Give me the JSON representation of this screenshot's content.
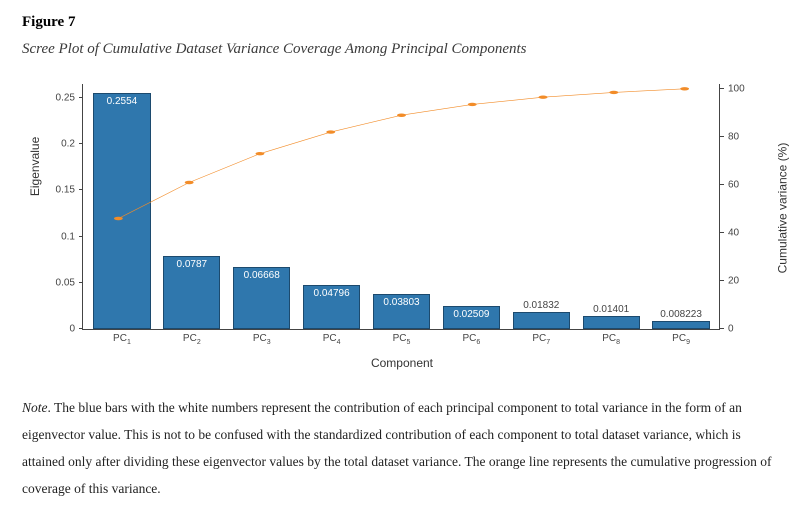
{
  "figure": {
    "number_label": "Figure 7",
    "title": "Scree Plot of Cumulative Dataset Variance Coverage Among Principal Components",
    "note_lead": "Note",
    "note_body": ". The blue bars with the white numbers represent the contribution of each principal component to total variance in the form of an eigenvector value. This is not to be confused with the standardized contribution of each component to total dataset variance, which is attained only after dividing these eigenvector values by the total dataset variance. The orange line represents the cumulative progression of coverage of this variance."
  },
  "chart": {
    "type": "bar+line-dual-axis",
    "background_color": "#ffffff",
    "bar_color": "#2f77ad",
    "bar_border_color": "#1c4a6e",
    "line_color": "#f28c28",
    "marker_color": "#f28c28",
    "axis_color": "#444444",
    "tick_font_size": 10,
    "axis_label_font_size": 12,
    "x_label": "Component",
    "y_left_label": "Eigenvalue",
    "y_right_label": "Cumulative variance (%)",
    "y_left": {
      "min": 0,
      "max": 0.265,
      "ticks": [
        0,
        0.05,
        0.1,
        0.15,
        0.2,
        0.25
      ]
    },
    "y_right": {
      "min": 0,
      "max": 102,
      "ticks": [
        0,
        20,
        40,
        60,
        80,
        100
      ]
    },
    "categories": [
      "PC1",
      "PC2",
      "PC3",
      "PC4",
      "PC5",
      "PC6",
      "PC7",
      "PC8",
      "PC9"
    ],
    "bars": {
      "values": [
        0.2554,
        0.0787,
        0.06668,
        0.04796,
        0.03803,
        0.02509,
        0.01832,
        0.01401,
        0.008223
      ],
      "value_labels": [
        "0.2554",
        "0.0787",
        "0.06668",
        "0.04796",
        "0.03803",
        "0.02509",
        "0.01832",
        "0.01401",
        "0.008223"
      ],
      "label_inside": [
        true,
        true,
        true,
        true,
        true,
        true,
        false,
        false,
        false
      ]
    },
    "line": {
      "cumulative_pct": [
        46,
        61,
        73,
        82,
        89,
        93.5,
        96.5,
        98.5,
        100
      ]
    }
  }
}
